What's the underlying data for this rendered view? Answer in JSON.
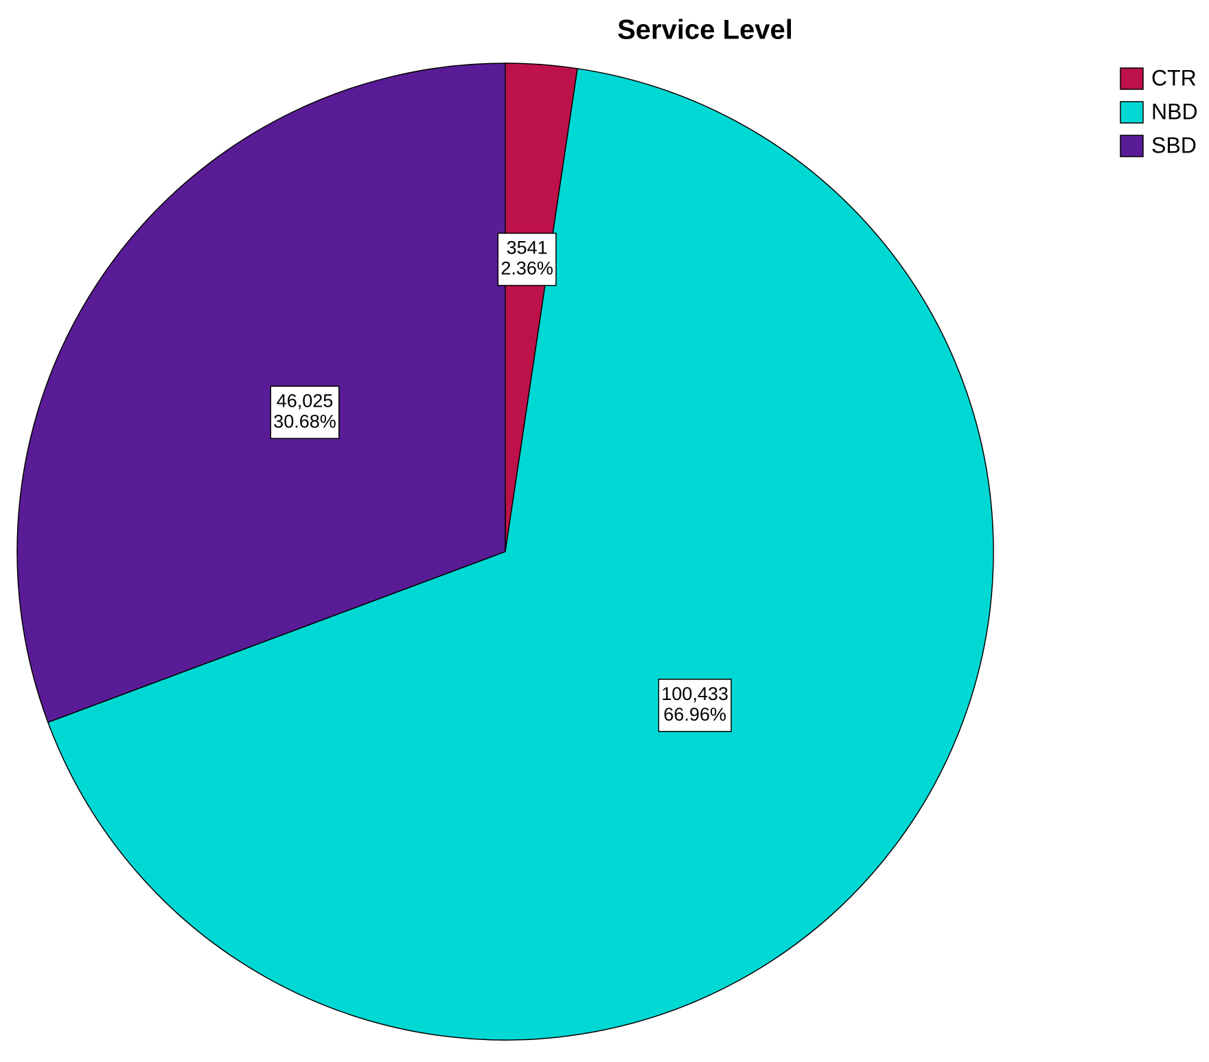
{
  "chart_data": {
    "type": "pie",
    "title": "Service Level",
    "categories": [
      "CTR",
      "NBD",
      "SBD"
    ],
    "values": [
      3541,
      100433,
      46025
    ],
    "value_labels": [
      "3541",
      "100,433",
      "46,025"
    ],
    "percent_labels": [
      "2.36%",
      "66.96%",
      "30.68%"
    ],
    "colors": [
      "#bd1249",
      "#00d8d4",
      "#5a1c96"
    ],
    "legend": "top-right"
  }
}
